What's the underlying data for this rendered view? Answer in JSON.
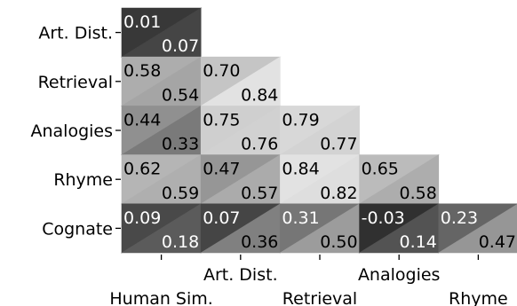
{
  "chart_data": {
    "type": "heatmap",
    "title": "",
    "xlabel": "",
    "ylabel": "",
    "rows": [
      "Art. Dist.",
      "Retrieval",
      "Analogies",
      "Rhyme",
      "Cognate"
    ],
    "columns": [
      "Human Sim.",
      "Art. Dist.",
      "Retrieval",
      "Analogies",
      "Rhyme"
    ],
    "value_range": [
      -0.1,
      0.9
    ],
    "grid": false,
    "legend": "none",
    "cells": [
      {
        "row": 0,
        "col": 0,
        "upper": "0.01",
        "lower": "0.07"
      },
      {
        "row": 1,
        "col": 0,
        "upper": "0.58",
        "lower": "0.54"
      },
      {
        "row": 1,
        "col": 1,
        "upper": "0.70",
        "lower": "0.84"
      },
      {
        "row": 2,
        "col": 0,
        "upper": "0.44",
        "lower": "0.33"
      },
      {
        "row": 2,
        "col": 1,
        "upper": "0.75",
        "lower": "0.76"
      },
      {
        "row": 2,
        "col": 2,
        "upper": "0.79",
        "lower": "0.77"
      },
      {
        "row": 3,
        "col": 0,
        "upper": "0.62",
        "lower": "0.59"
      },
      {
        "row": 3,
        "col": 1,
        "upper": "0.47",
        "lower": "0.57"
      },
      {
        "row": 3,
        "col": 2,
        "upper": "0.84",
        "lower": "0.82"
      },
      {
        "row": 3,
        "col": 3,
        "upper": "0.65",
        "lower": "0.58"
      },
      {
        "row": 4,
        "col": 0,
        "upper": "0.09",
        "lower": "0.18"
      },
      {
        "row": 4,
        "col": 1,
        "upper": "0.07",
        "lower": "0.36"
      },
      {
        "row": 4,
        "col": 2,
        "upper": "0.31",
        "lower": "0.50"
      },
      {
        "row": 4,
        "col": 3,
        "upper": "-0.03",
        "lower": "0.14"
      },
      {
        "row": 4,
        "col": 4,
        "upper": "0.23",
        "lower": "0.47"
      }
    ]
  }
}
